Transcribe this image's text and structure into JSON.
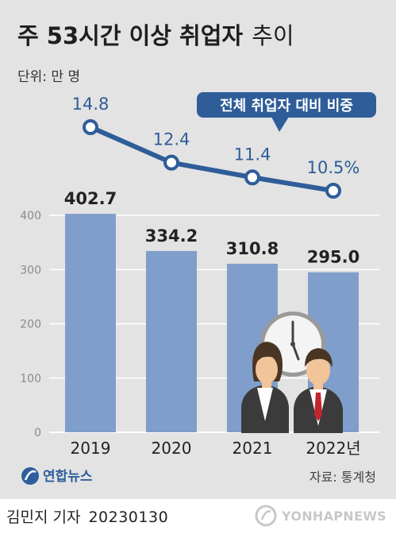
{
  "title": {
    "main": "주 53시간 이상 취업자",
    "sub": "추이"
  },
  "unit": "단위: 만 명",
  "source": "자료: 통계청",
  "logo": "연합뉴스",
  "reporter": "김민지 기자",
  "date": "20230130",
  "watermark": "YONHAPNEWS",
  "colors": {
    "bar": "#7f9ecb",
    "line": "#2e5d99",
    "background": "#e3e3e3",
    "callout": "#2e5d99"
  },
  "chart_data": [
    {
      "type": "bar",
      "categories": [
        "2019",
        "2020",
        "2021",
        "2022년"
      ],
      "values": [
        402.7,
        334.2,
        310.8,
        295.0
      ],
      "value_labels": [
        "402.7",
        "334.2",
        "310.8",
        "295.0"
      ],
      "yticks": [
        0,
        100,
        200,
        300,
        400
      ],
      "ylim": [
        0,
        420
      ],
      "grid": true
    },
    {
      "type": "line",
      "categories": [
        "2019",
        "2020",
        "2021",
        "2022년"
      ],
      "values": [
        14.8,
        12.4,
        11.4,
        10.5
      ],
      "value_labels": [
        "14.8",
        "12.4",
        "11.4",
        "10.5%"
      ],
      "series_name": "전체 취업자 대비 비중"
    }
  ]
}
